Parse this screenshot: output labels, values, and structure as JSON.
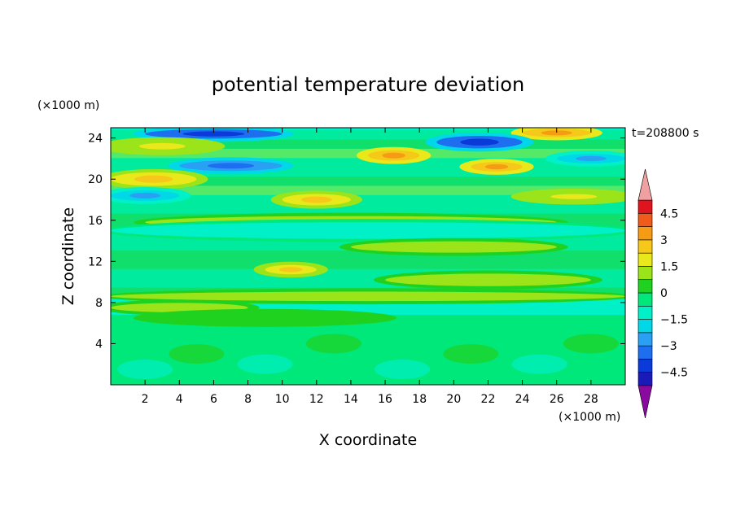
{
  "chart_data": {
    "type": "heatmap",
    "title": "potential temperature deviation",
    "xlabel": "X coordinate",
    "ylabel": "Z coordinate",
    "x_unit": "(×1000 m)",
    "y_unit": "(×1000 m)",
    "time_label": "t=208800 s",
    "xlim": [
      0,
      30
    ],
    "ylim": [
      0,
      25
    ],
    "x_ticks": [
      2,
      4,
      6,
      8,
      10,
      12,
      14,
      16,
      18,
      20,
      22,
      24,
      26,
      28
    ],
    "y_ticks": [
      4,
      8,
      12,
      16,
      20,
      24
    ],
    "colorbar": {
      "labels": [
        "4.5",
        "3",
        "1.5",
        "0",
        "−1.5",
        "−3",
        "−4.5"
      ],
      "label_values": [
        4.5,
        3,
        1.5,
        0,
        -1.5,
        -3,
        -4.5
      ],
      "levels": [
        -5.25,
        -4.5,
        -3.75,
        -3,
        -2.25,
        -1.5,
        -0.75,
        0,
        0.75,
        1.5,
        2.25,
        3,
        3.75,
        4.5,
        5.25
      ],
      "colors": [
        "#2d0a8a",
        "#1a1ab8",
        "#0a3ad8",
        "#1e6ef0",
        "#2aa0f5",
        "#00d8e8",
        "#00f0c8",
        "#00e87a",
        "#1fd21f",
        "#9be41a",
        "#e8e81a",
        "#f5c81a",
        "#f59b14",
        "#f05a1a",
        "#e0141e",
        "#c80a14"
      ],
      "over_color": "#f0a0a0",
      "under_color": "#8a0aa0"
    },
    "bands": [
      {
        "y": 24.4,
        "x0": 2,
        "x1": 10,
        "v": -4.2,
        "h": 0.6
      },
      {
        "y": 24.5,
        "x0": 24,
        "x1": 28,
        "v": 3.0,
        "h": 0.5
      },
      {
        "y": 23.6,
        "x0": 19,
        "x1": 24,
        "v": -4.5,
        "h": 0.9
      },
      {
        "y": 23.2,
        "x0": 0,
        "x1": 6,
        "v": 1.5,
        "h": 0.8
      },
      {
        "y": 22.3,
        "x0": 15,
        "x1": 18,
        "v": 3.2,
        "h": 0.7
      },
      {
        "y": 22.0,
        "x0": 26,
        "x1": 30,
        "v": -2.6,
        "h": 0.6
      },
      {
        "y": 21.3,
        "x0": 4,
        "x1": 10,
        "v": -3.5,
        "h": 0.7
      },
      {
        "y": 21.2,
        "x0": 21,
        "x1": 24,
        "v": 3.0,
        "h": 0.6
      },
      {
        "y": 20.0,
        "x0": 0,
        "x1": 5,
        "v": 2.3,
        "h": 1.0
      },
      {
        "y": 18.4,
        "x0": 0,
        "x1": 4,
        "v": -2.8,
        "h": 0.7
      },
      {
        "y": 18.0,
        "x0": 10,
        "x1": 14,
        "v": 2.8,
        "h": 0.8
      },
      {
        "y": 18.3,
        "x0": 24,
        "x1": 30,
        "v": 1.5,
        "h": 0.6
      },
      {
        "y": 15.8,
        "x0": 2,
        "x1": 26,
        "v": 1.4,
        "h": 0.9
      },
      {
        "y": 15.0,
        "x0": 0,
        "x1": 30,
        "v": -1.0,
        "h": 1.3
      },
      {
        "y": 13.4,
        "x0": 14,
        "x1": 26,
        "v": 1.2,
        "h": 0.8
      },
      {
        "y": 11.2,
        "x0": 9,
        "x1": 12,
        "v": 2.6,
        "h": 0.6
      },
      {
        "y": 10.2,
        "x0": 16,
        "x1": 28,
        "v": 1.4,
        "h": 0.9
      },
      {
        "y": 8.6,
        "x0": 0,
        "x1": 30,
        "v": 1.2,
        "h": 0.6
      },
      {
        "y": 7.5,
        "x0": 0,
        "x1": 8,
        "v": 1.3,
        "h": 0.6
      },
      {
        "y": 6.5,
        "x0": 2,
        "x1": 16,
        "v": 0.3,
        "h": 0.8
      }
    ]
  }
}
